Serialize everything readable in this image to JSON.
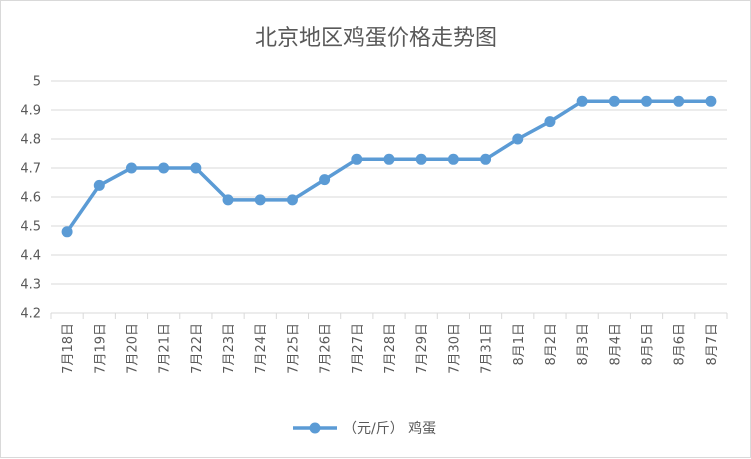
{
  "chart_data": {
    "type": "line",
    "title": "北京地区鸡蛋价格走势图",
    "categories": [
      "7月18日",
      "7月19日",
      "7月20日",
      "7月21日",
      "7月22日",
      "7月23日",
      "7月24日",
      "7月25日",
      "7月26日",
      "7月27日",
      "7月28日",
      "7月29日",
      "7月30日",
      "7月31日",
      "8月1日",
      "8月2日",
      "8月3日",
      "8月4日",
      "8月5日",
      "8月6日",
      "8月7日"
    ],
    "series": [
      {
        "name": "（元/斤）  鸡蛋",
        "color": "#5b9bd5",
        "values": [
          4.48,
          4.64,
          4.7,
          4.7,
          4.7,
          4.59,
          4.59,
          4.59,
          4.66,
          4.73,
          4.73,
          4.73,
          4.73,
          4.73,
          4.8,
          4.86,
          4.93,
          4.93,
          4.93,
          4.93,
          4.93
        ]
      }
    ],
    "ylim": [
      4.2,
      5.0
    ],
    "yticks": [
      "4.2",
      "4.3",
      "4.4",
      "4.5",
      "4.6",
      "4.7",
      "4.8",
      "4.9",
      "5"
    ],
    "xlabel": "",
    "ylabel": "",
    "grid": true,
    "legend": "bottom-center"
  }
}
